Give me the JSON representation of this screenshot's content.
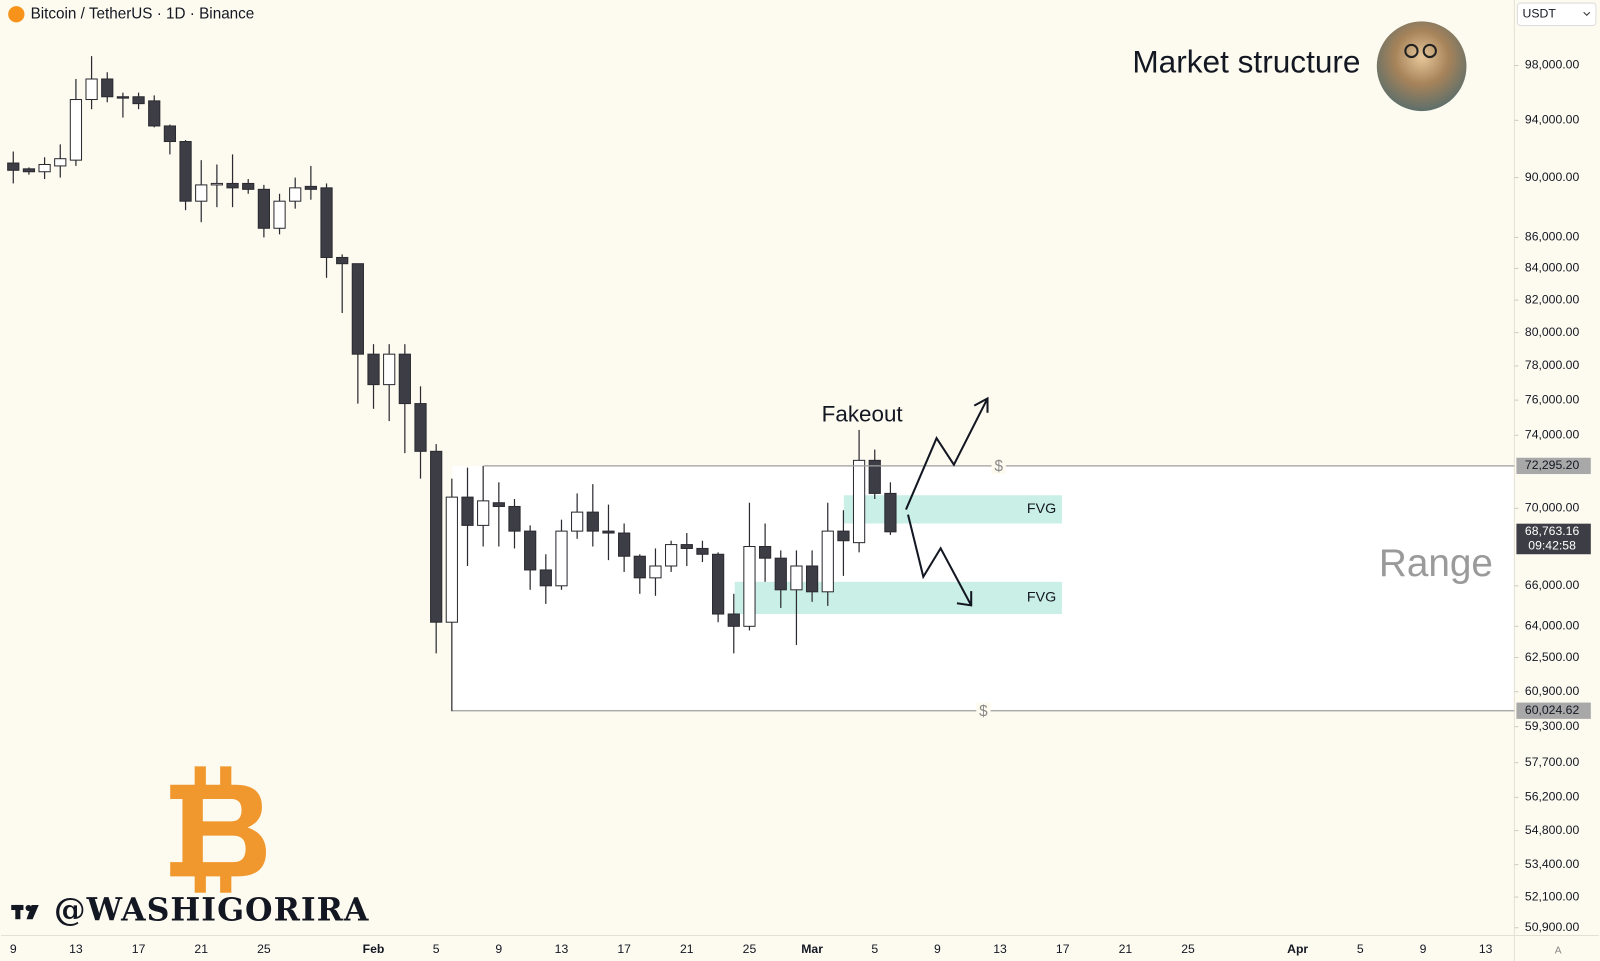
{
  "chart_data": {
    "type": "candlestick",
    "title": "Bitcoin / TetherUS · 1D · Binance",
    "currency": "USDT",
    "headline": "Market structure",
    "range_label": "Range",
    "fakeout_label": "Fakeout",
    "author": "@WASHIGORIRA",
    "log_scale": true,
    "up_color": "#ffffff",
    "down_color": "#3d3d45",
    "zone_color": "#c9efe6",
    "categories": [
      "9",
      null,
      null,
      null,
      "13",
      null,
      null,
      null,
      "17",
      null,
      null,
      null,
      "21",
      null,
      null,
      null,
      "25",
      null,
      null,
      null,
      null,
      null,
      null,
      "Feb",
      null,
      null,
      null,
      "5",
      null,
      null,
      null,
      "9",
      null,
      null,
      null,
      "13",
      null,
      null,
      null,
      "17",
      null,
      null,
      null,
      "21",
      null,
      null,
      null,
      "25",
      null,
      null,
      null,
      "Mar",
      null,
      null,
      null,
      "5",
      null,
      null,
      null,
      "9",
      null,
      null,
      null,
      "13",
      null,
      null,
      null,
      "17",
      null,
      null,
      null,
      "21",
      null,
      null,
      null,
      "25",
      null,
      null,
      null,
      null,
      null,
      null,
      "Apr",
      null,
      null,
      null,
      "5",
      null,
      null,
      null,
      "9",
      null,
      null,
      null,
      "13",
      null
    ],
    "open": [
      91000,
      90600,
      90400,
      90800,
      91200,
      95500,
      97000,
      95700,
      95700,
      95400,
      93600,
      92500,
      88400,
      89500,
      89600,
      89600,
      89200,
      86600,
      88400,
      89400,
      89300,
      84700,
      84300,
      78700,
      76900,
      78700,
      75800,
      73100,
      64200,
      70600,
      69100,
      70300,
      70100,
      68800,
      66800,
      66000,
      68800,
      69800,
      68800,
      68700,
      67500,
      66400,
      67000,
      68100,
      67900,
      67600,
      64600,
      64000,
      68000,
      67400,
      65800,
      67000,
      65700,
      68800,
      68200,
      72600,
      70800,
      null,
      null,
      null,
      null,
      null,
      null,
      null,
      null,
      null,
      null,
      null,
      null,
      null,
      null,
      null,
      null,
      null,
      null,
      null,
      null,
      null,
      null,
      null,
      null,
      null,
      null,
      null,
      null,
      null,
      null,
      null,
      null,
      null,
      null,
      null,
      null,
      null,
      null,
      null
    ],
    "high": [
      91800,
      90700,
      91400,
      92300,
      97000,
      98700,
      97500,
      96000,
      96000,
      95800,
      93700,
      92600,
      91200,
      90900,
      91600,
      89900,
      89500,
      88900,
      90000,
      90800,
      89600,
      84900,
      84300,
      79300,
      79300,
      79300,
      76800,
      73500,
      71600,
      72200,
      72300,
      71400,
      70500,
      69100,
      67600,
      69400,
      70800,
      71300,
      70200,
      69200,
      67600,
      67900,
      68300,
      68700,
      68300,
      67700,
      65600,
      70300,
      69200,
      67800,
      67800,
      67800,
      70300,
      69900,
      74300,
      73200,
      71400,
      null,
      null,
      null,
      null,
      null,
      null,
      null,
      null,
      null,
      null,
      null,
      null,
      null,
      null,
      null,
      null,
      null,
      null,
      null,
      null,
      null,
      null,
      null,
      null,
      null,
      null,
      null,
      null,
      null,
      null,
      null,
      null,
      null,
      null,
      null,
      null,
      null,
      null,
      null
    ],
    "low": [
      89600,
      90200,
      89900,
      90000,
      90800,
      94800,
      95300,
      94200,
      94800,
      93500,
      91600,
      87800,
      87000,
      88000,
      88000,
      88900,
      86000,
      86200,
      87900,
      88500,
      83400,
      81200,
      75800,
      75500,
      74800,
      73000,
      71600,
      62700,
      60000,
      67000,
      68000,
      68000,
      67900,
      65800,
      65100,
      65800,
      68400,
      68000,
      67300,
      66700,
      65600,
      65500,
      66700,
      67000,
      67200,
      64200,
      62700,
      63800,
      66200,
      64900,
      63100,
      65200,
      65000,
      66500,
      67700,
      70500,
      68600,
      null,
      null,
      null,
      null,
      null,
      null,
      null,
      null,
      null,
      null,
      null,
      null,
      null,
      null,
      null,
      null,
      null,
      null,
      null,
      null,
      null,
      null,
      null,
      null,
      null,
      null,
      null,
      null,
      null,
      null,
      null,
      null,
      null,
      null,
      null,
      null,
      null,
      null,
      null
    ],
    "close": [
      90500,
      90400,
      90900,
      91300,
      95500,
      97000,
      95700,
      95600,
      95200,
      93600,
      92500,
      88400,
      89500,
      89600,
      89300,
      89200,
      86600,
      88400,
      89300,
      89200,
      84700,
      84300,
      78700,
      76900,
      78700,
      75800,
      73100,
      64200,
      70600,
      69100,
      70400,
      70100,
      68800,
      66800,
      66000,
      68800,
      69800,
      68800,
      68700,
      67500,
      66400,
      67000,
      68100,
      67900,
      67600,
      64600,
      64000,
      68000,
      67400,
      65800,
      67000,
      65700,
      68800,
      68300,
      72600,
      70800,
      68763.16,
      null,
      null,
      null,
      null,
      null,
      null,
      null,
      null,
      null,
      null,
      null,
      null,
      null,
      null,
      null,
      null,
      null,
      null,
      null,
      null,
      null,
      null,
      null,
      null,
      null,
      null,
      null,
      null,
      null,
      null,
      null,
      null,
      null,
      null,
      null,
      null,
      null,
      null,
      null
    ],
    "ylim": [
      50600,
      103000
    ],
    "yticks": [
      {
        "value": 98000,
        "label": "98,000.00"
      },
      {
        "value": 94000,
        "label": "94,000.00"
      },
      {
        "value": 90000,
        "label": "90,000.00"
      },
      {
        "value": 86000,
        "label": "86,000.00"
      },
      {
        "value": 84000,
        "label": "84,000.00"
      },
      {
        "value": 82000,
        "label": "82,000.00"
      },
      {
        "value": 80000,
        "label": "80,000.00"
      },
      {
        "value": 78000,
        "label": "78,000.00"
      },
      {
        "value": 76000,
        "label": "76,000.00"
      },
      {
        "value": 74000,
        "label": "74,000.00"
      },
      {
        "value": 70000,
        "label": "70,000.00"
      },
      {
        "value": 66000,
        "label": "66,000.00"
      },
      {
        "value": 64000,
        "label": "64,000.00"
      },
      {
        "value": 62500,
        "label": "62,500.00"
      },
      {
        "value": 60900,
        "label": "60,900.00"
      },
      {
        "value": 59300,
        "label": "59,300.00"
      },
      {
        "value": 57700,
        "label": "57,700.00"
      },
      {
        "value": 56200,
        "label": "56,200.00"
      },
      {
        "value": 54800,
        "label": "54,800.00"
      },
      {
        "value": 53400,
        "label": "53,400.00"
      },
      {
        "value": 52100,
        "label": "52,100.00"
      },
      {
        "value": 50900,
        "label": "50,900.00"
      }
    ],
    "range_levels": [
      {
        "value": 72295.2,
        "label": "72,295.20",
        "marker": "$"
      },
      {
        "value": 60024.62,
        "label": "60,024.62",
        "marker": "$"
      }
    ],
    "last_price": {
      "value": 68763.16,
      "label": "68,763.16"
    },
    "countdown": "09:42:58",
    "zones": [
      {
        "label": "FVG",
        "high": 70700,
        "low": 69200
      },
      {
        "label": "FVG",
        "high": 66200,
        "low": 64600
      }
    ]
  }
}
